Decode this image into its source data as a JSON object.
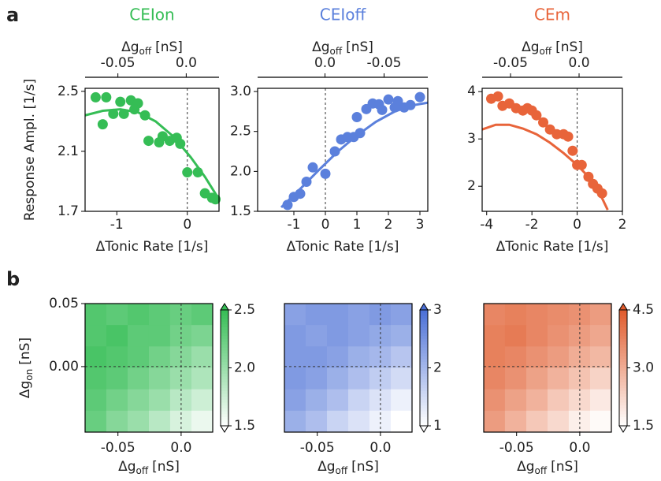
{
  "chart_data": [
    {
      "panel": "a",
      "type": "scatter",
      "title": "CEIon",
      "color": "#35bd55",
      "x": [
        -1.3,
        -1.15,
        -1.2,
        -1.05,
        -0.95,
        -0.9,
        -0.8,
        -0.7,
        -0.75,
        -0.6,
        -0.55,
        -0.4,
        -0.35,
        -0.25,
        -0.15,
        -0.1,
        0,
        0.15,
        0.25,
        0.35,
        0.4
      ],
      "y": [
        2.46,
        2.46,
        2.28,
        2.35,
        2.43,
        2.35,
        2.44,
        2.42,
        2.38,
        2.34,
        2.17,
        2.16,
        2.2,
        2.17,
        2.19,
        2.15,
        1.96,
        1.96,
        1.82,
        1.79,
        1.78
      ],
      "fit": {
        "x": [
          -1.45,
          -1.2,
          -0.95,
          -0.7,
          -0.45,
          -0.2,
          0.05,
          0.25,
          0.45
        ],
        "y": [
          2.34,
          2.37,
          2.38,
          2.36,
          2.3,
          2.2,
          2.06,
          1.93,
          1.78
        ]
      },
      "xlim": [
        -1.45,
        0.45
      ],
      "ylim": [
        1.7,
        2.52
      ],
      "xticks": [
        -1,
        0
      ],
      "yticks": [
        1.7,
        2.1,
        2.5
      ],
      "x2lim": [
        -0.074,
        0.024
      ],
      "x2ticks": [
        -0.05,
        {
          "value": 0,
          "label": "0.0"
        }
      ],
      "reference_x": 0,
      "xlabel": "ΔTonic Rate [1/s]",
      "x2label": {
        "text": "Δg",
        "sub": "off",
        "unit": "[nS]"
      },
      "ylabel": "Response Ampl. [1/s]"
    },
    {
      "type": "scatter",
      "title": "CEIoff",
      "color": "#5b80dc",
      "x": [
        -1.2,
        -1.0,
        -0.8,
        -0.6,
        -0.4,
        0,
        0.3,
        0.5,
        0.7,
        0.9,
        1.1,
        1.0,
        1.3,
        1.5,
        1.7,
        1.8,
        2.0,
        2.2,
        2.3,
        2.5,
        2.7,
        3.0
      ],
      "y": [
        1.58,
        1.68,
        1.72,
        1.87,
        2.05,
        1.97,
        2.25,
        2.4,
        2.43,
        2.43,
        2.48,
        2.68,
        2.78,
        2.85,
        2.84,
        2.77,
        2.9,
        2.8,
        2.88,
        2.8,
        2.83,
        2.93
      ],
      "fit": {
        "x": [
          -1.4,
          -0.8,
          -0.2,
          0.4,
          1.0,
          1.6,
          2.2,
          2.8,
          3.25
        ],
        "y": [
          1.55,
          1.78,
          2.02,
          2.25,
          2.45,
          2.62,
          2.75,
          2.83,
          2.86
        ]
      },
      "xlim": [
        -2.15,
        3.25
      ],
      "ylim": [
        1.5,
        3.04
      ],
      "xticks": [
        -1,
        0,
        1,
        2,
        3
      ],
      "yticks": [
        1.5,
        {
          "value": 2,
          "label": "2.0"
        },
        2.5,
        {
          "value": 3,
          "label": "3.0"
        }
      ],
      "x2lim": [
        0.057,
        -0.087
      ],
      "x2ticks": [
        {
          "value": 0,
          "label": "0.0"
        },
        -0.05
      ],
      "reference_x": 0,
      "xlabel": "ΔTonic Rate [1/s]",
      "x2label": {
        "text": "Δg",
        "sub": "off",
        "unit": "[nS]"
      }
    },
    {
      "type": "scatter",
      "title": "CEm",
      "color": "#e8643a",
      "x": [
        -3.8,
        -3.5,
        -3.3,
        -3.0,
        -2.7,
        -2.4,
        -2.2,
        -2.0,
        -1.8,
        -1.5,
        -1.2,
        -0.9,
        -0.6,
        -0.4,
        -0.2,
        0,
        0.2,
        0.5,
        0.7,
        0.9,
        1.1
      ],
      "y": [
        3.85,
        3.9,
        3.7,
        3.75,
        3.65,
        3.6,
        3.65,
        3.6,
        3.5,
        3.35,
        3.2,
        3.1,
        3.1,
        3.05,
        2.75,
        2.45,
        2.45,
        2.2,
        2.05,
        1.95,
        1.85
      ],
      "fit": {
        "x": [
          -4.2,
          -3.6,
          -3.0,
          -2.4,
          -1.8,
          -1.2,
          -0.6,
          0,
          0.6,
          1.0,
          1.35
        ],
        "y": [
          3.2,
          3.3,
          3.3,
          3.22,
          3.1,
          2.92,
          2.7,
          2.45,
          2.15,
          1.85,
          1.5
        ]
      },
      "xlim": [
        -4.2,
        2
      ],
      "ylim": [
        1.47,
        4.07
      ],
      "xticks": [
        -4,
        -2,
        0,
        2
      ],
      "yticks": [
        2,
        3,
        4
      ],
      "x2lim": [
        -0.0707,
        0.0316
      ],
      "x2ticks": [
        -0.05,
        {
          "value": 0,
          "label": "0.0"
        }
      ],
      "reference_x": 0,
      "xlabel": "ΔTonic Rate [1/s]",
      "x2label": {
        "text": "Δg",
        "sub": "off",
        "unit": "[nS]"
      }
    },
    {
      "panel": "b",
      "type": "heatmap",
      "color": "#35bd55",
      "x": [
        -0.0676,
        -0.0508,
        -0.0339,
        -0.0171,
        -0.0003,
        0.0166
      ],
      "y": [
        0.0415,
        0.0245,
        0.0075,
        -0.0095,
        -0.0265,
        -0.0435
      ],
      "z": [
        [
          2.35,
          2.3,
          2.35,
          2.3,
          2.25,
          2.3
        ],
        [
          2.35,
          2.4,
          2.3,
          2.3,
          2.2,
          2.15
        ],
        [
          2.4,
          2.35,
          2.3,
          2.2,
          2.1,
          2.0
        ],
        [
          2.35,
          2.3,
          2.2,
          2.1,
          2.0,
          1.9
        ],
        [
          2.3,
          2.2,
          2.1,
          2.0,
          1.85,
          1.75
        ],
        [
          2.25,
          2.1,
          2.0,
          1.85,
          1.7,
          1.6
        ]
      ],
      "xlim": [
        -0.076,
        0.025
      ],
      "ylim": [
        -0.052,
        0.05
      ],
      "xticks": [
        -0.05,
        {
          "value": 0,
          "label": "0.0"
        }
      ],
      "yticks": [
        {
          "value": 0,
          "label": "0.00"
        },
        0.05
      ],
      "reference_x": 0,
      "reference_y": 0,
      "clim": [
        1.5,
        2.5
      ],
      "cticks": [
        1.5,
        {
          "value": 2,
          "label": "2.0"
        },
        2.5
      ],
      "xlabel": {
        "text": "Δg",
        "sub": "off",
        "unit": "[nS]"
      },
      "ylabel": {
        "text": "Δg",
        "sub": "on",
        "unit": "[nS]"
      }
    },
    {
      "type": "heatmap",
      "color": "#4a6fd6",
      "x": [
        -0.0676,
        -0.0508,
        -0.0339,
        -0.0171,
        -0.0003,
        0.0166
      ],
      "y": [
        0.0415,
        0.0245,
        0.0075,
        -0.0095,
        -0.0265,
        -0.0435
      ],
      "z": [
        [
          2.3,
          2.4,
          2.4,
          2.3,
          2.4,
          2.3
        ],
        [
          2.4,
          2.3,
          2.4,
          2.3,
          2.2,
          2.1
        ],
        [
          2.4,
          2.4,
          2.3,
          2.1,
          2.0,
          1.8
        ],
        [
          2.4,
          2.3,
          2.1,
          1.9,
          1.7,
          1.5
        ],
        [
          2.3,
          2.1,
          1.9,
          1.6,
          1.4,
          1.2
        ],
        [
          2.1,
          1.9,
          1.6,
          1.4,
          1.2,
          1.0
        ]
      ],
      "xlim": [
        -0.076,
        0.025
      ],
      "ylim": [
        -0.052,
        0.05
      ],
      "xticks": [
        -0.05,
        {
          "value": 0,
          "label": "0.0"
        }
      ],
      "reference_x": 0,
      "reference_y": 0,
      "clim": [
        1,
        3
      ],
      "cticks": [
        1,
        2,
        3
      ],
      "xlabel": {
        "text": "Δg",
        "sub": "off",
        "unit": "[nS]"
      }
    },
    {
      "type": "heatmap",
      "color": "#e05a2b",
      "x": [
        -0.0676,
        -0.0508,
        -0.0339,
        -0.0171,
        -0.0003,
        0.0166
      ],
      "y": [
        0.0415,
        0.0245,
        0.0075,
        -0.0095,
        -0.0265,
        -0.0435
      ],
      "z": [
        [
          3.7,
          3.8,
          3.7,
          3.6,
          3.5,
          3.3
        ],
        [
          3.8,
          3.9,
          3.7,
          3.5,
          3.3,
          3.1
        ],
        [
          3.8,
          3.7,
          3.5,
          3.3,
          3.0,
          2.8
        ],
        [
          3.7,
          3.5,
          3.2,
          2.9,
          2.6,
          2.3
        ],
        [
          3.5,
          3.2,
          2.9,
          2.5,
          2.2,
          1.9
        ],
        [
          3.3,
          2.9,
          2.5,
          2.2,
          1.8,
          1.6
        ]
      ],
      "xlim": [
        -0.076,
        0.025
      ],
      "ylim": [
        -0.052,
        0.05
      ],
      "xticks": [
        -0.05,
        {
          "value": 0,
          "label": "0.0"
        }
      ],
      "reference_x": 0,
      "reference_y": 0,
      "clim": [
        1.5,
        4.5
      ],
      "cticks": [
        1.5,
        {
          "value": 3,
          "label": "3.0"
        },
        4.5
      ],
      "xlabel": {
        "text": "Δg",
        "sub": "off",
        "unit": "[nS]"
      }
    }
  ]
}
